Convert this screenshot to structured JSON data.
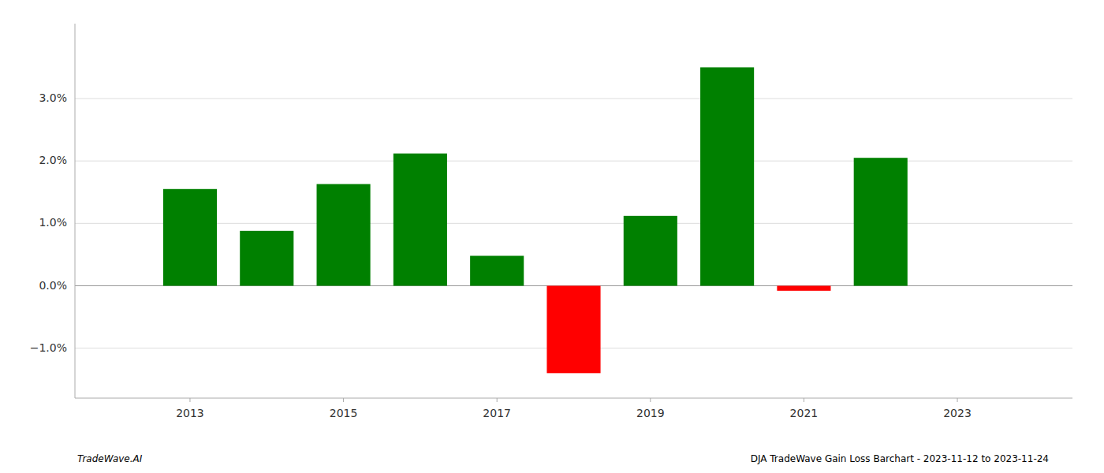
{
  "chart_data": {
    "type": "bar",
    "x": [
      2013,
      2014,
      2015,
      2016,
      2017,
      2018,
      2019,
      2020,
      2021,
      2022
    ],
    "values": [
      0.0155,
      0.0088,
      0.0163,
      0.0212,
      0.0048,
      -0.014,
      0.0112,
      0.035,
      -0.0008,
      0.0205
    ],
    "colors": [
      "#008000",
      "#008000",
      "#008000",
      "#008000",
      "#008000",
      "#ff0000",
      "#008000",
      "#008000",
      "#ff0000",
      "#008000"
    ],
    "xlim": [
      2011.5,
      2024.5
    ],
    "xticks": [
      2013,
      2015,
      2017,
      2019,
      2021,
      2023
    ],
    "ylim": [
      -0.018,
      0.042
    ],
    "yticks": [
      {
        "value": -0.01,
        "label": "−1.0%"
      },
      {
        "value": 0.0,
        "label": "0.0%"
      },
      {
        "value": 0.01,
        "label": "1.0%"
      },
      {
        "value": 0.02,
        "label": "2.0%"
      },
      {
        "value": 0.03,
        "label": "3.0%"
      }
    ],
    "grid": true,
    "annotations": [
      "TradeWave.AI",
      "DJA TradeWave Gain Loss Barchart - 2023-11-12 to 2023-11-24"
    ]
  }
}
